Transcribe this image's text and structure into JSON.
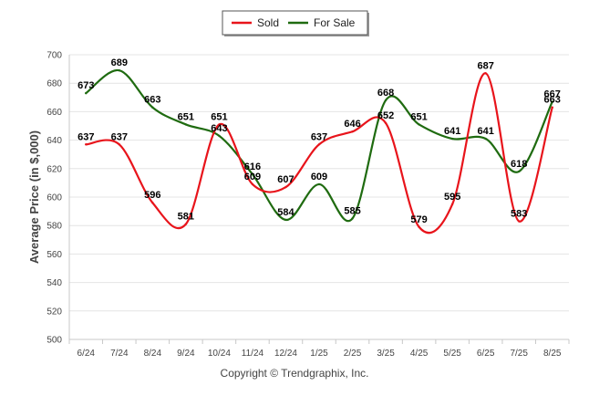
{
  "footer": "Copyright © Trendgraphix, Inc.",
  "chart_data": {
    "type": "line",
    "title": "",
    "ylabel": "Average Price (in $,000)",
    "xlabel": "",
    "ylim": [
      500,
      700
    ],
    "yticks": [
      500,
      520,
      540,
      560,
      580,
      600,
      620,
      640,
      660,
      680,
      700
    ],
    "grid": true,
    "legend_position": "top-center",
    "categories": [
      "6/24",
      "7/24",
      "8/24",
      "9/24",
      "10/24",
      "11/24",
      "12/24",
      "1/25",
      "2/25",
      "3/25",
      "4/25",
      "5/25",
      "6/25",
      "7/25",
      "8/25"
    ],
    "series": [
      {
        "name": "Sold",
        "color": "#e8141b",
        "values": [
          637,
          637,
          596,
          581,
          651,
          609,
          607,
          637,
          646,
          652,
          579,
          595,
          687,
          583,
          663
        ]
      },
      {
        "name": "For Sale",
        "color": "#1f6b10",
        "values": [
          673,
          689,
          663,
          651,
          643,
          616,
          584,
          609,
          585,
          668,
          651,
          641,
          641,
          618,
          667
        ]
      }
    ]
  }
}
